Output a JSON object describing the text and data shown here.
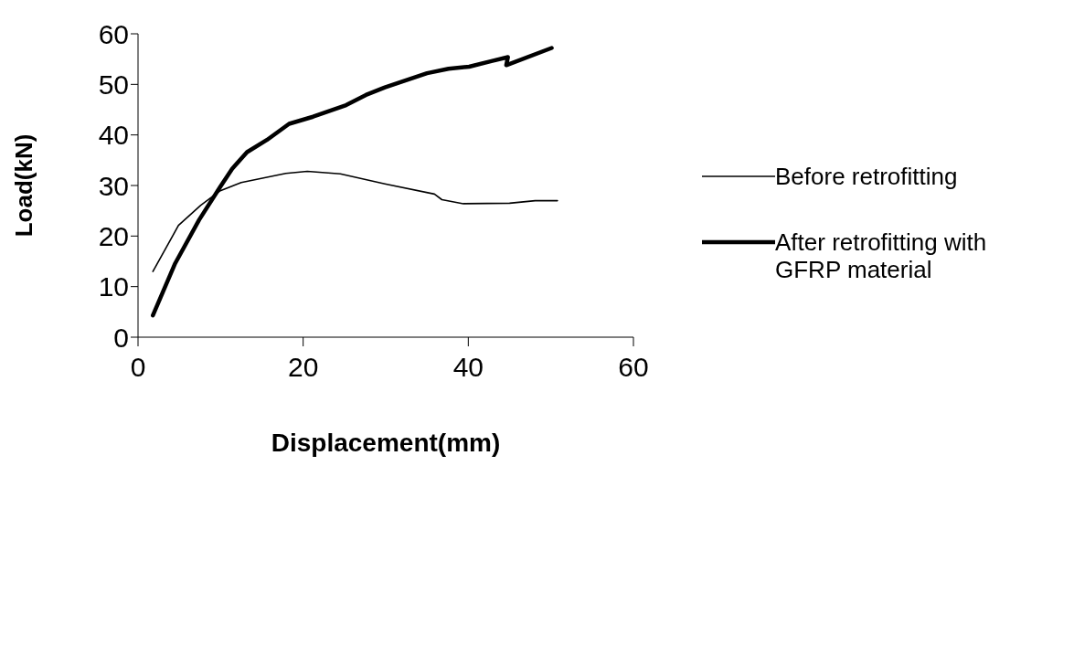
{
  "chart_data": {
    "type": "line",
    "xlabel": "Displacement(mm)",
    "ylabel": "Load(kN)",
    "xlim": [
      0,
      60
    ],
    "xticks": [
      0,
      20,
      40,
      60
    ],
    "ylim": [
      0,
      60
    ],
    "yticks": [
      0,
      10,
      20,
      30,
      40,
      50,
      60
    ],
    "grid": false,
    "legend": "right",
    "marker": "none",
    "line_style": "solid",
    "series": [
      {
        "name": "Before retrofitting",
        "color": "#000000",
        "x": [
          1.8,
          4.9,
          7.6,
          9.9,
          12.5,
          17.9,
          20.5,
          24.5,
          29.9,
          35.9,
          36.8,
          39.4,
          45,
          48.1,
          50.8
        ],
        "values": [
          13.0,
          22.1,
          26.1,
          28.9,
          30.6,
          32.4,
          32.8,
          32.3,
          30.3,
          28.3,
          27.2,
          26.4,
          26.5,
          27.0,
          27.0
        ]
      },
      {
        "name": "After retrofitting with GFRP material",
        "color": "#000000",
        "x": [
          1.8,
          4.5,
          7.4,
          9.9,
          11.4,
          13.2,
          15.6,
          18.3,
          21.2,
          25.2,
          27.6,
          29.9,
          35.0,
          37.6,
          40.1,
          42.8,
          44.8,
          44.6,
          50.1
        ],
        "values": [
          4.3,
          14.6,
          23.2,
          29.6,
          33.3,
          36.6,
          39.0,
          42.2,
          43.6,
          45.9,
          47.9,
          49.4,
          52.2,
          53.1,
          53.5,
          54.6,
          55.4,
          53.8,
          57.2
        ]
      }
    ]
  }
}
